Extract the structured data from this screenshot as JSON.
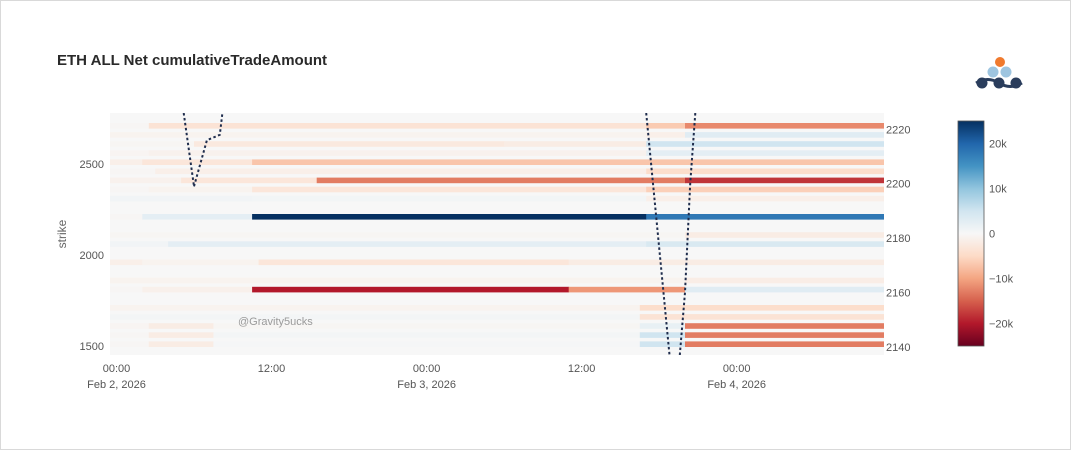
{
  "chart_data": {
    "type": "heatmap",
    "title": "ETH ALL Net cumulativeTradeAmount",
    "ylabel": "strike",
    "y2label": "",
    "x_ticks": [
      {
        "t": 0,
        "line1": "00:00",
        "line2": "Feb 2, 2026"
      },
      {
        "t": 12,
        "line1": "12:00",
        "line2": ""
      },
      {
        "t": 24,
        "line1": "00:00",
        "line2": "Feb 3, 2026"
      },
      {
        "t": 36,
        "line1": "12:00",
        "line2": ""
      },
      {
        "t": 48,
        "line1": "00:00",
        "line2": "Feb 4, 2026"
      }
    ],
    "xlim_hours": [
      -0.5,
      59.4
    ],
    "y_ticks": [
      1500,
      2000,
      2500
    ],
    "ylim": [
      1450,
      2780
    ],
    "y2_ticks": [
      2140,
      2160,
      2180,
      2200,
      2220
    ],
    "y2lim": [
      2137,
      2226
    ],
    "colorscale": [
      "#67001f",
      "#b2182b",
      "#d6604d",
      "#f4a582",
      "#fddbc7",
      "#f7f7f7",
      "#d1e5f0",
      "#92c5de",
      "#4393c3",
      "#2166ac",
      "#053061"
    ],
    "zlim": [
      -25000,
      25000
    ],
    "colorbar_ticks": [
      {
        "v": 20000,
        "label": "20k"
      },
      {
        "v": 10000,
        "label": "10k"
      },
      {
        "v": 0,
        "label": "0"
      },
      {
        "v": -10000,
        "label": "−10k"
      },
      {
        "v": -20000,
        "label": "−20k"
      }
    ],
    "rows": [
      {
        "strike": 2700,
        "segments": [
          [
            -0.5,
            2.5,
            -300
          ],
          [
            2.5,
            41,
            -3500
          ],
          [
            41,
            44,
            -6500
          ],
          [
            44,
            59.4,
            -12000
          ]
        ]
      },
      {
        "strike": 2650,
        "segments": [
          [
            -0.5,
            41,
            -800
          ],
          [
            41,
            44,
            -1500
          ],
          [
            44,
            59.4,
            3000
          ]
        ]
      },
      {
        "strike": 2600,
        "segments": [
          [
            -0.5,
            6,
            -400
          ],
          [
            6,
            30,
            -2500
          ],
          [
            30,
            41,
            -2000
          ],
          [
            41,
            59.4,
            5000
          ]
        ]
      },
      {
        "strike": 2550,
        "segments": [
          [
            -0.5,
            2.5,
            -500
          ],
          [
            2.5,
            41,
            -1000
          ],
          [
            41,
            59.4,
            2500
          ]
        ]
      },
      {
        "strike": 2500,
        "segments": [
          [
            -0.5,
            2,
            -1500
          ],
          [
            2,
            10.5,
            -3000
          ],
          [
            10.5,
            59.4,
            -7000
          ]
        ]
      },
      {
        "strike": 2450,
        "segments": [
          [
            -0.5,
            3,
            -300
          ],
          [
            3,
            41,
            -1500
          ],
          [
            41,
            59.4,
            -4500
          ]
        ]
      },
      {
        "strike": 2400,
        "segments": [
          [
            -0.5,
            5,
            -1000
          ],
          [
            5,
            15.5,
            -3000
          ],
          [
            15.5,
            44,
            -13000
          ],
          [
            44,
            59.4,
            -18000
          ]
        ]
      },
      {
        "strike": 2350,
        "segments": [
          [
            -0.5,
            2.5,
            -300
          ],
          [
            2.5,
            10.5,
            -800
          ],
          [
            10.5,
            41,
            -3000
          ],
          [
            41,
            59.4,
            -6000
          ]
        ]
      },
      {
        "strike": 2300,
        "segments": [
          [
            -0.5,
            10.5,
            800
          ],
          [
            10.5,
            41,
            600
          ],
          [
            41,
            59.4,
            -1500
          ]
        ]
      },
      {
        "strike": 2200,
        "segments": [
          [
            -0.5,
            2,
            -300
          ],
          [
            2,
            10.5,
            2500
          ],
          [
            10.5,
            41,
            25000
          ],
          [
            41,
            59.4,
            18000
          ]
        ]
      },
      {
        "strike": 2100,
        "segments": [
          [
            -0.5,
            44,
            -400
          ],
          [
            44,
            59.4,
            -2000
          ]
        ]
      },
      {
        "strike": 2050,
        "segments": [
          [
            -0.5,
            4,
            800
          ],
          [
            4,
            41,
            2500
          ],
          [
            41,
            59.4,
            4000
          ]
        ]
      },
      {
        "strike": 1950,
        "segments": [
          [
            -0.5,
            2,
            -1500
          ],
          [
            2,
            11,
            -800
          ],
          [
            11,
            35,
            -3000
          ],
          [
            35,
            59.4,
            -2000
          ]
        ]
      },
      {
        "strike": 1850,
        "segments": [
          [
            -0.5,
            44,
            -800
          ],
          [
            44,
            59.4,
            -1800
          ]
        ]
      },
      {
        "strike": 1800,
        "segments": [
          [
            -0.5,
            2,
            -300
          ],
          [
            2,
            10.5,
            -1200
          ],
          [
            10.5,
            35,
            -20000
          ],
          [
            35,
            44,
            -11000
          ],
          [
            44,
            59.4,
            3000
          ]
        ]
      },
      {
        "strike": 1700,
        "segments": [
          [
            -0.5,
            40.5,
            -800
          ],
          [
            40.5,
            59.4,
            -4500
          ]
        ]
      },
      {
        "strike": 1650,
        "segments": [
          [
            -0.5,
            40.5,
            500
          ],
          [
            40.5,
            59.4,
            -3500
          ]
        ]
      },
      {
        "strike": 1600,
        "segments": [
          [
            -0.5,
            2.5,
            -500
          ],
          [
            2.5,
            7.5,
            -2000
          ],
          [
            7.5,
            40.5,
            -400
          ],
          [
            40.5,
            44,
            2000
          ],
          [
            44,
            59.4,
            -13000
          ]
        ]
      },
      {
        "strike": 1550,
        "segments": [
          [
            -0.5,
            2.5,
            -300
          ],
          [
            2.5,
            7.5,
            -2000
          ],
          [
            7.5,
            40.5,
            500
          ],
          [
            40.5,
            44,
            5000
          ],
          [
            44,
            59.4,
            -13000
          ]
        ]
      },
      {
        "strike": 1500,
        "segments": [
          [
            -0.5,
            2.5,
            -300
          ],
          [
            2.5,
            7.5,
            -2000
          ],
          [
            7.5,
            40.5,
            300
          ],
          [
            40.5,
            44,
            5000
          ],
          [
            44,
            59.4,
            -13000
          ]
        ]
      }
    ],
    "price_line": {
      "axis": "y2",
      "segments": [
        [
          [
            5.2,
            2226
          ],
          [
            6.0,
            2199
          ]
        ],
        [
          [
            6.0,
            2199
          ],
          [
            7.0,
            2216
          ],
          [
            7.5,
            2217
          ],
          [
            8.0,
            2218
          ],
          [
            8.2,
            2226
          ]
        ],
        [
          [
            41.0,
            2226
          ],
          [
            42.8,
            2137
          ]
        ],
        [
          [
            43.6,
            2137
          ],
          [
            44.0,
            2160
          ],
          [
            44.4,
            2200
          ],
          [
            44.8,
            2226
          ]
        ]
      ]
    },
    "watermark": "@Gravity5ucks"
  }
}
